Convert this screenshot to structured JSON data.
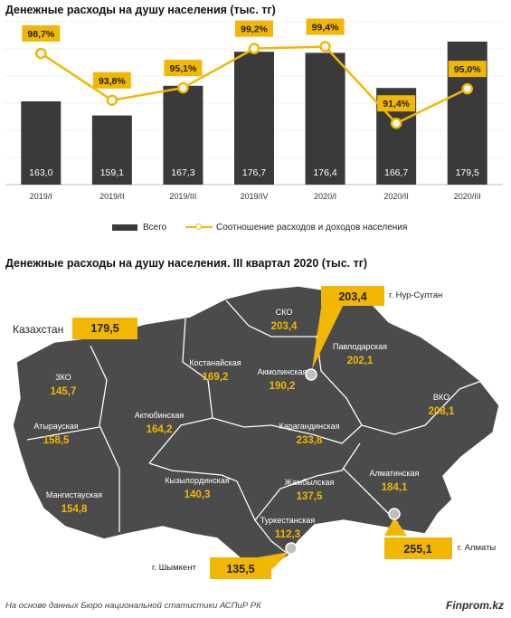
{
  "colors": {
    "bar": "#3a3a3a",
    "line": "#f2b705",
    "map": "#4b4b4b",
    "highlight": "#f2b705"
  },
  "chart1": {
    "title": "Денежные расходы на душу населения (тыс. тг)",
    "legend": {
      "bar": "Всего",
      "line": "Соотношение расходов и доходов населения"
    }
  },
  "chart_data": [
    {
      "type": "bar",
      "title": "Денежные расходы на душу населения (тыс. тг)",
      "categories": [
        "2019/I",
        "2019/II",
        "2019/III",
        "2019/IV",
        "2020/I",
        "2020/II",
        "2020/III"
      ],
      "series": [
        {
          "name": "Всего",
          "type": "bar",
          "values": [
            163.0,
            159.1,
            167.3,
            176.7,
            176.4,
            166.7,
            179.5
          ],
          "labels": [
            "163,0",
            "159,1",
            "167,3",
            "176,7",
            "176,4",
            "166,7",
            "179,5"
          ]
        },
        {
          "name": "Соотношение расходов и доходов населения",
          "type": "line",
          "values": [
            98.7,
            93.8,
            95.1,
            99.2,
            99.4,
            91.4,
            95.0
          ],
          "labels": [
            "98,7%",
            "93,8%",
            "95,1%",
            "99,2%",
            "99,4%",
            "91,4%",
            "95,0%"
          ]
        }
      ],
      "ylim": [
        140,
        185
      ],
      "ylim_line": [
        85,
        102
      ],
      "grid": true,
      "legend_position": "bottom"
    }
  ],
  "map": {
    "title": "Денежные расходы на душу населения. III квартал 2020  (тыс. тг)",
    "kazakhstan": {
      "label": "Казахстан",
      "value": "179,5"
    },
    "regions": [
      {
        "name": "СКО",
        "value": "203,4"
      },
      {
        "name": "Костанайская",
        "value": "169,2"
      },
      {
        "name": "Акмолинская",
        "value": "190,2"
      },
      {
        "name": "Павлодарская",
        "value": "202,1"
      },
      {
        "name": "ЗКО",
        "value": "145,7"
      },
      {
        "name": "Актюбинская",
        "value": "164,2"
      },
      {
        "name": "ВКО",
        "value": "208,1"
      },
      {
        "name": "Атырауская",
        "value": "158,5"
      },
      {
        "name": "Карагандинская",
        "value": "233,8"
      },
      {
        "name": "Мангистауская",
        "value": "154,8"
      },
      {
        "name": "Кызылординская",
        "value": "140,3"
      },
      {
        "name": "Жамбылская",
        "value": "137,5"
      },
      {
        "name": "Алматинская",
        "value": "184,1"
      },
      {
        "name": "Туркестанская",
        "value": "112,3"
      }
    ],
    "cities": [
      {
        "name": "г. Нур-Султан",
        "value": "203,4"
      },
      {
        "name": "г. Алматы",
        "value": "255,1"
      },
      {
        "name": "г. Шымкент",
        "value": "135,5"
      }
    ]
  },
  "source": "На основе данных Бюро национальной статистики АСПиР РК",
  "brand": "Finprom.kz"
}
